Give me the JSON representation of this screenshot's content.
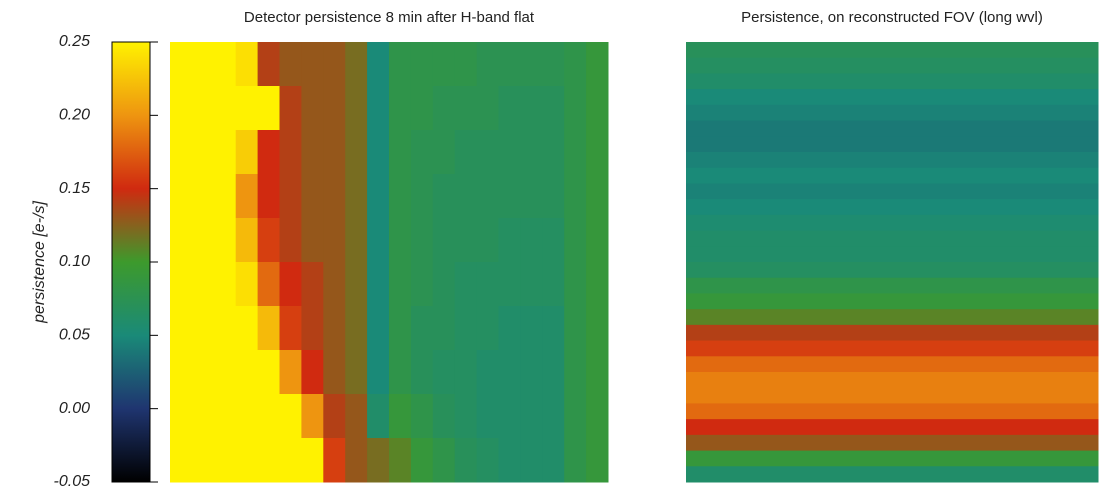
{
  "chart_data": {
    "type": "heatmap",
    "colorbar": {
      "label": "persistence [e-/s]",
      "lim": [
        -0.05,
        0.25
      ],
      "ticks": [
        -0.05,
        {
          "value": 0,
          "label": "0.00"
        },
        0.05,
        {
          "value": 0.1,
          "label": "0.10"
        },
        0.15,
        {
          "value": 0.2,
          "label": "0.20"
        },
        0.25
      ]
    },
    "colormap": [
      "#000000",
      "#1f3570",
      "#1a8a78",
      "#3d9a2c",
      "#d02a10",
      "#ee9510",
      "#fff200"
    ],
    "panels": [
      {
        "title": "Detector persistence 8 min after H-band flat",
        "values": [
          [
            0.25,
            0.25,
            0.25,
            0.24,
            0.14,
            0.13,
            0.13,
            0.13,
            0.12,
            0.05,
            0.08,
            0.08,
            0.08,
            0.08,
            0.075,
            0.075,
            0.075,
            0.075,
            0.08,
            0.09
          ],
          [
            0.25,
            0.25,
            0.25,
            0.25,
            0.25,
            0.14,
            0.13,
            0.13,
            0.12,
            0.05,
            0.08,
            0.08,
            0.075,
            0.075,
            0.075,
            0.07,
            0.07,
            0.07,
            0.08,
            0.09
          ],
          [
            0.25,
            0.25,
            0.25,
            0.23,
            0.15,
            0.14,
            0.13,
            0.13,
            0.12,
            0.05,
            0.08,
            0.075,
            0.075,
            0.07,
            0.07,
            0.07,
            0.07,
            0.07,
            0.08,
            0.09
          ],
          [
            0.25,
            0.25,
            0.25,
            0.2,
            0.15,
            0.14,
            0.13,
            0.13,
            0.12,
            0.05,
            0.08,
            0.075,
            0.07,
            0.07,
            0.07,
            0.07,
            0.07,
            0.07,
            0.08,
            0.09
          ],
          [
            0.25,
            0.25,
            0.25,
            0.22,
            0.16,
            0.14,
            0.13,
            0.13,
            0.12,
            0.05,
            0.08,
            0.075,
            0.07,
            0.07,
            0.07,
            0.065,
            0.065,
            0.065,
            0.08,
            0.09
          ],
          [
            0.25,
            0.25,
            0.25,
            0.24,
            0.18,
            0.15,
            0.14,
            0.13,
            0.12,
            0.05,
            0.08,
            0.075,
            0.07,
            0.065,
            0.065,
            0.065,
            0.065,
            0.065,
            0.08,
            0.09
          ],
          [
            0.25,
            0.25,
            0.25,
            0.25,
            0.22,
            0.16,
            0.14,
            0.13,
            0.12,
            0.05,
            0.08,
            0.07,
            0.07,
            0.065,
            0.065,
            0.06,
            0.06,
            0.06,
            0.08,
            0.09
          ],
          [
            0.25,
            0.25,
            0.25,
            0.25,
            0.25,
            0.2,
            0.15,
            0.13,
            0.12,
            0.05,
            0.08,
            0.07,
            0.065,
            0.065,
            0.06,
            0.06,
            0.06,
            0.06,
            0.08,
            0.09
          ],
          [
            0.25,
            0.25,
            0.25,
            0.25,
            0.25,
            0.25,
            0.2,
            0.14,
            0.13,
            0.06,
            0.09,
            0.08,
            0.07,
            0.065,
            0.06,
            0.06,
            0.06,
            0.06,
            0.08,
            0.09
          ],
          [
            0.25,
            0.25,
            0.25,
            0.25,
            0.25,
            0.25,
            0.25,
            0.16,
            0.13,
            0.12,
            0.11,
            0.09,
            0.08,
            0.07,
            0.065,
            0.06,
            0.06,
            0.06,
            0.08,
            0.09
          ]
        ]
      },
      {
        "title": "Persistence, on reconstructed FOV (long wvl)",
        "values": [
          [
            0.07
          ],
          [
            0.065
          ],
          [
            0.06
          ],
          [
            0.05
          ],
          [
            0.045
          ],
          [
            0.04
          ],
          [
            0.04
          ],
          [
            0.045
          ],
          [
            0.05
          ],
          [
            0.045
          ],
          [
            0.05
          ],
          [
            0.055
          ],
          [
            0.06
          ],
          [
            0.06
          ],
          [
            0.065
          ],
          [
            0.08
          ],
          [
            0.09
          ],
          [
            0.11
          ],
          [
            0.14
          ],
          [
            0.16
          ],
          [
            0.18
          ],
          [
            0.19
          ],
          [
            0.19
          ],
          [
            0.18
          ],
          [
            0.15
          ],
          [
            0.13
          ],
          [
            0.09
          ],
          [
            0.06
          ]
        ]
      }
    ]
  }
}
